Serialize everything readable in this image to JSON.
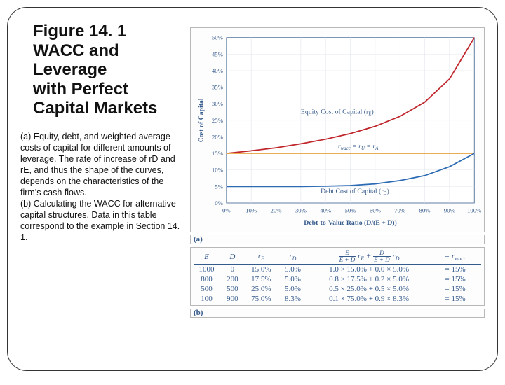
{
  "title_lines": [
    "Figure 14. 1",
    "WACC and",
    "Leverage",
    "with Perfect",
    "Capital Markets"
  ],
  "body_text": "(a) Equity, debt, and weighted average costs of capital for different amounts of leverage. The rate of increase of rD and rE, and thus the shape of the curves, depends on the characteristics of the firm's cash flows.\n(b) Calculating the WACC for alternative capital structures. Data in this table correspond to the example in Section 14. 1.",
  "chart": {
    "type": "line",
    "plot_bg": "#ffffff",
    "outer_bg": "#fdfdfd",
    "grid_color": "#e1e5eb",
    "border_color": "#355a8c",
    "axis_color": "#355a8c",
    "text_color": "#355a8c",
    "ylabel": "Cost of Capital",
    "xlabel": "Debt-to-Value Ratio (D/(E + D))",
    "xlim": [
      0,
      100
    ],
    "xtick_step": 10,
    "ylim": [
      0,
      50
    ],
    "ytick_step": 5,
    "series": [
      {
        "name": "equity-cost",
        "label": "Equity Cost of Capital (rE)",
        "color": "#c0272d",
        "width": 1.8,
        "pts": [
          [
            0,
            15
          ],
          [
            10,
            15.8
          ],
          [
            20,
            16.7
          ],
          [
            30,
            17.9
          ],
          [
            40,
            19.3
          ],
          [
            50,
            21.0
          ],
          [
            60,
            23.2
          ],
          [
            70,
            26.2
          ],
          [
            80,
            30.5
          ],
          [
            90,
            37.5
          ],
          [
            100,
            50
          ]
        ]
      },
      {
        "name": "wacc",
        "label": "rwacc = rU = rA",
        "color": "#e8a23b",
        "width": 1.6,
        "pts": [
          [
            0,
            15
          ],
          [
            100,
            15
          ]
        ]
      },
      {
        "name": "debt-cost",
        "label": "Debt Cost of Capital (rD)",
        "color": "#2d6cb5",
        "width": 1.8,
        "pts": [
          [
            0,
            5
          ],
          [
            30,
            5
          ],
          [
            40,
            5.1
          ],
          [
            50,
            5.3
          ],
          [
            60,
            5.8
          ],
          [
            70,
            6.8
          ],
          [
            80,
            8.3
          ],
          [
            90,
            11
          ],
          [
            100,
            15
          ]
        ]
      }
    ],
    "label_equity": "Equity Cost of Capital (r",
    "label_equity_sub": "E",
    "label_wacc": "rwacc = rU = rA",
    "label_debt": "Debt Cost of Capital (r",
    "label_debt_sub": "D",
    "title_fontsize": 10,
    "axis_fontsize": 9,
    "tick_fontsize": 9
  },
  "panel_a_label": "(a)",
  "panel_b_label": "(b)",
  "table": {
    "text_color": "#355a8c",
    "col_widths_pct": [
      9,
      9,
      11,
      11,
      42,
      18
    ],
    "headers_html": [
      "<i>E</i>",
      "<i>D</i>",
      "<i>r<span class='sub'>E</span></i>",
      "<i>r<span class='sub'>D</span></i>",
      "<span class='frac'><span class='num'><i>E</i></span><span class='den'><i>E</i> + <i>D</i></span></span>&nbsp;<i>r<span class='sub'>E</span></i> + <span class='frac'><span class='num'><i>D</i></span><span class='den'><i>E</i> + <i>D</i></span></span>&nbsp;<i>r<span class='sub'>D</span></i>",
      "= <i>r<span class='sub'>wacc</span></i>"
    ],
    "rows": [
      [
        "1000",
        "0",
        "15.0%",
        "5.0%",
        "1.0 × 15.0% + 0.0 × 5.0%",
        "= 15%"
      ],
      [
        "800",
        "200",
        "17.5%",
        "5.0%",
        "0.8 × 17.5% + 0.2 × 5.0%",
        "= 15%"
      ],
      [
        "500",
        "500",
        "25.0%",
        "5.0%",
        "0.5 × 25.0% + 0.5 × 5.0%",
        "= 15%"
      ],
      [
        "100",
        "900",
        "75.0%",
        "8.3%",
        "0.1 × 75.0% + 0.9 × 8.3%",
        "= 15%"
      ]
    ]
  }
}
